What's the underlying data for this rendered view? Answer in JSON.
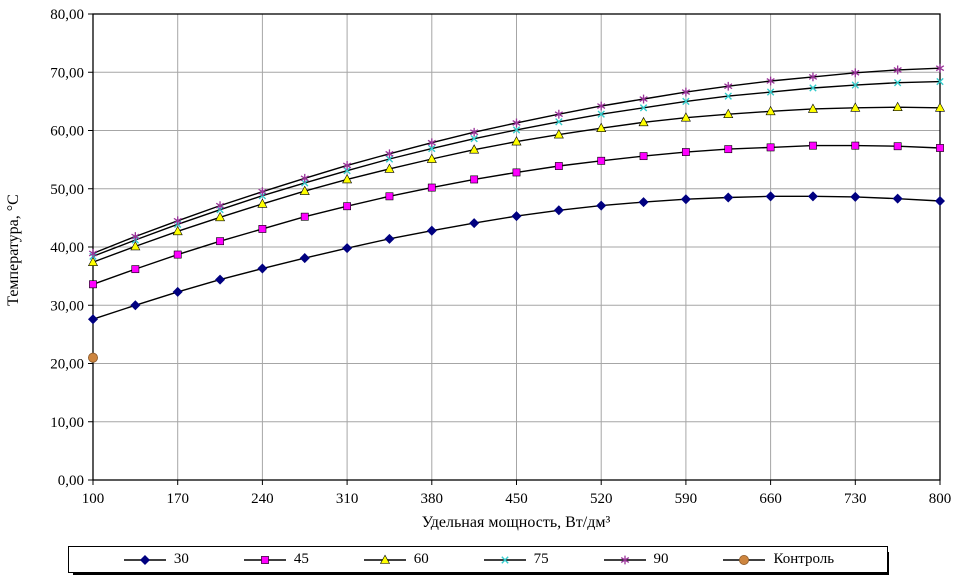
{
  "chart_data": {
    "type": "line",
    "title": "",
    "xlabel": "Удельная мощность, Вт/дм³",
    "ylabel": "Температура, °С",
    "xlim": [
      100,
      800
    ],
    "ylim": [
      0,
      80
    ],
    "grid": true,
    "legend_position": "bottom",
    "xticks": [
      100,
      170,
      240,
      310,
      380,
      450,
      520,
      590,
      660,
      730,
      800
    ],
    "yticks": {
      "values": [
        0,
        10,
        20,
        30,
        40,
        50,
        60,
        70,
        80
      ],
      "labels": [
        "0,00",
        "10,00",
        "20,00",
        "30,00",
        "40,00",
        "50,00",
        "60,00",
        "70,00",
        "80,00"
      ]
    },
    "x": [
      100,
      135,
      170,
      205,
      240,
      275,
      310,
      345,
      380,
      415,
      450,
      485,
      520,
      555,
      590,
      625,
      660,
      695,
      730,
      765,
      800
    ],
    "series": [
      {
        "name": "30",
        "marker": "diamond",
        "color": "#000080",
        "line_color": "#000000",
        "values": [
          27.6,
          30.0,
          32.3,
          34.4,
          36.3,
          38.1,
          39.8,
          41.4,
          42.8,
          44.1,
          45.3,
          46.3,
          47.1,
          47.7,
          48.2,
          48.5,
          48.7,
          48.7,
          48.6,
          48.3,
          47.9
        ]
      },
      {
        "name": "45",
        "marker": "square",
        "color": "#FF00FF",
        "line_color": "#000000",
        "values": [
          33.6,
          36.2,
          38.7,
          41.0,
          43.1,
          45.2,
          47.0,
          48.7,
          50.2,
          51.6,
          52.8,
          53.9,
          54.8,
          55.6,
          56.3,
          56.8,
          57.1,
          57.4,
          57.4,
          57.3,
          57.0
        ]
      },
      {
        "name": "60",
        "marker": "triangle",
        "color": "#FFFF00",
        "line_color": "#000000",
        "values": [
          37.4,
          40.1,
          42.7,
          45.1,
          47.4,
          49.6,
          51.6,
          53.4,
          55.1,
          56.7,
          58.1,
          59.3,
          60.4,
          61.4,
          62.2,
          62.8,
          63.3,
          63.7,
          63.9,
          64.0,
          63.9
        ]
      },
      {
        "name": "75",
        "marker": "x",
        "color": "#33CCCC",
        "line_color": "#000000",
        "values": [
          38.4,
          41.2,
          43.9,
          46.4,
          48.8,
          51.0,
          53.1,
          55.1,
          56.9,
          58.6,
          60.1,
          61.5,
          62.8,
          63.9,
          65.0,
          65.9,
          66.6,
          67.3,
          67.8,
          68.2,
          68.4
        ]
      },
      {
        "name": "90",
        "marker": "asterisk",
        "color": "#993399",
        "line_color": "#000000",
        "values": [
          38.9,
          41.8,
          44.5,
          47.1,
          49.5,
          51.8,
          54.0,
          56.0,
          57.9,
          59.7,
          61.3,
          62.8,
          64.2,
          65.4,
          66.6,
          67.6,
          68.5,
          69.2,
          69.9,
          70.4,
          70.7
        ]
      },
      {
        "name": "Контроль",
        "marker": "circle",
        "color": "#CD853F",
        "line_color": "#000000",
        "x": [
          100
        ],
        "values": [
          21.0
        ]
      }
    ]
  }
}
